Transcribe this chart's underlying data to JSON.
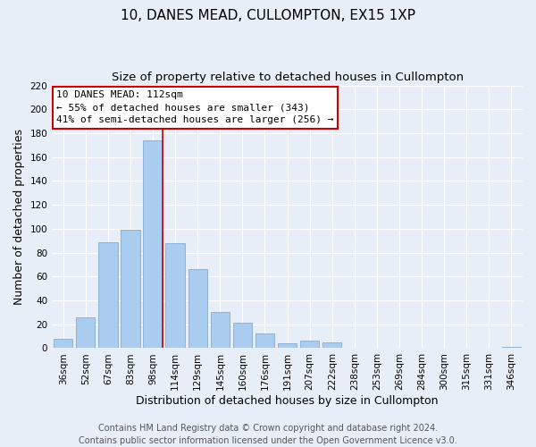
{
  "title": "10, DANES MEAD, CULLOMPTON, EX15 1XP",
  "subtitle": "Size of property relative to detached houses in Cullompton",
  "xlabel": "Distribution of detached houses by size in Cullompton",
  "ylabel": "Number of detached properties",
  "bar_labels": [
    "36sqm",
    "52sqm",
    "67sqm",
    "83sqm",
    "98sqm",
    "114sqm",
    "129sqm",
    "145sqm",
    "160sqm",
    "176sqm",
    "191sqm",
    "207sqm",
    "222sqm",
    "238sqm",
    "253sqm",
    "269sqm",
    "284sqm",
    "300sqm",
    "315sqm",
    "331sqm",
    "346sqm"
  ],
  "bar_values": [
    8,
    26,
    89,
    99,
    174,
    88,
    66,
    30,
    21,
    12,
    4,
    6,
    5,
    0,
    0,
    0,
    0,
    0,
    0,
    0,
    1
  ],
  "bar_color": "#aaccee",
  "bar_edge_color": "#88aacc",
  "vline_color": "#cc0000",
  "ylim": [
    0,
    220
  ],
  "yticks": [
    0,
    20,
    40,
    60,
    80,
    100,
    120,
    140,
    160,
    180,
    200,
    220
  ],
  "annotation_title": "10 DANES MEAD: 112sqm",
  "annotation_line1": "← 55% of detached houses are smaller (343)",
  "annotation_line2": "41% of semi-detached houses are larger (256) →",
  "annotation_box_color": "#ffffff",
  "annotation_box_edge": "#cc0000",
  "footer1": "Contains HM Land Registry data © Crown copyright and database right 2024.",
  "footer2": "Contains public sector information licensed under the Open Government Licence v3.0.",
  "background_color": "#e8eef8",
  "plot_bg_color": "#e8eef8",
  "grid_color": "#ffffff",
  "title_fontsize": 11,
  "subtitle_fontsize": 9.5,
  "axis_label_fontsize": 9,
  "tick_fontsize": 7.5,
  "annotation_fontsize": 8,
  "footer_fontsize": 7
}
